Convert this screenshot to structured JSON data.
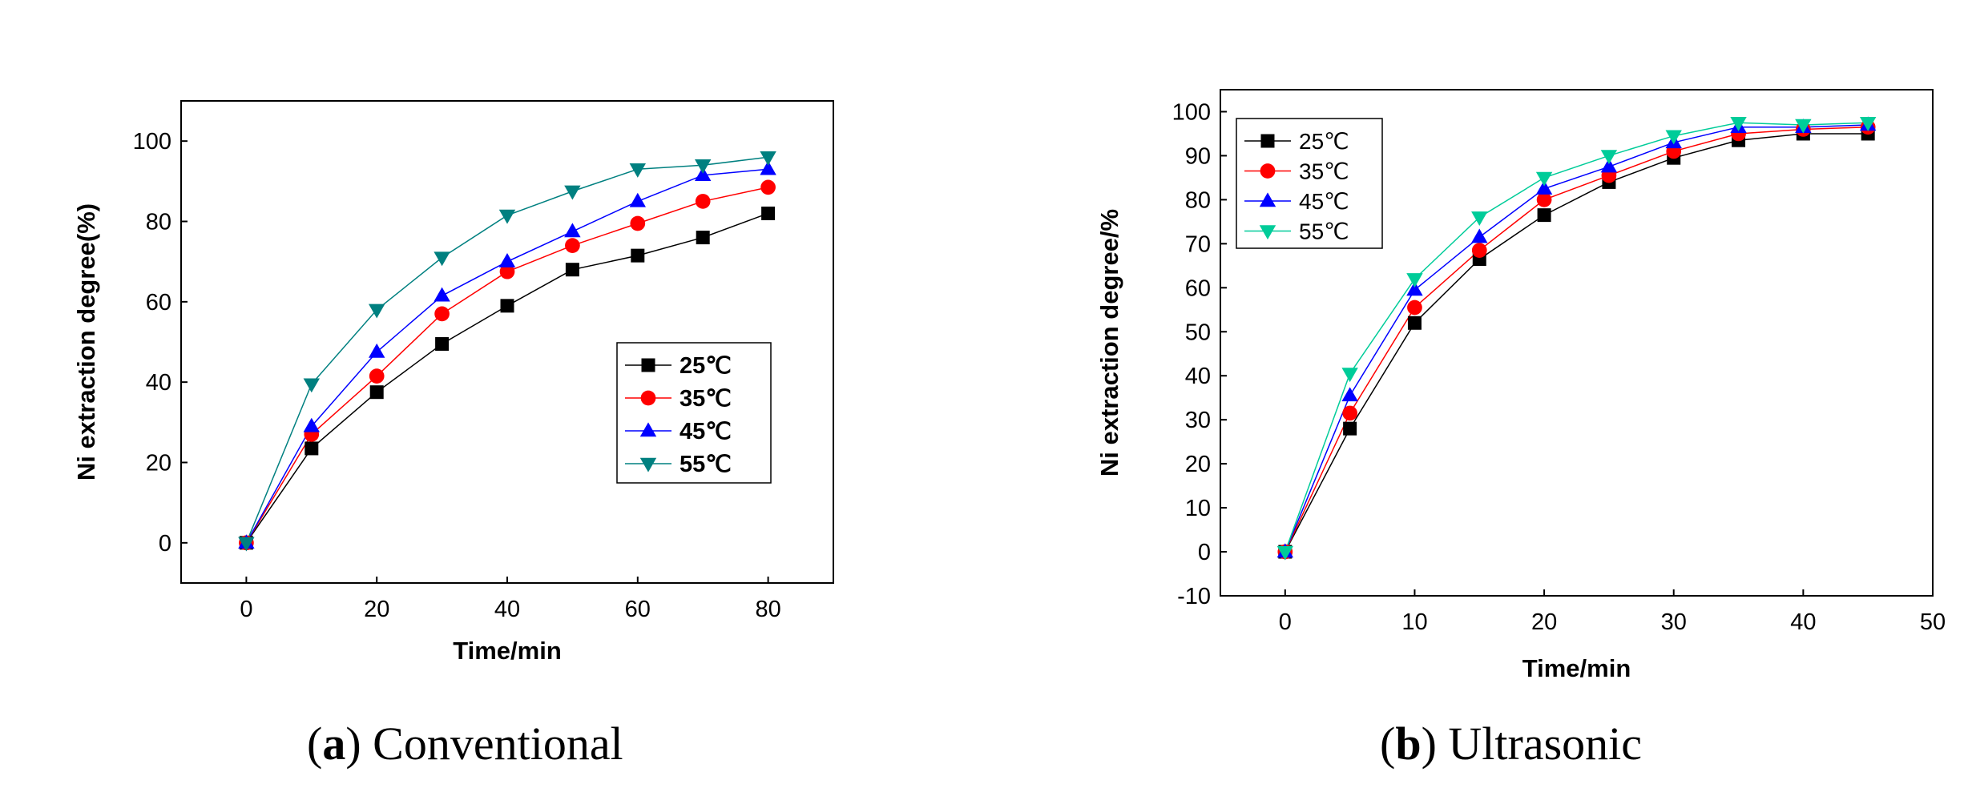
{
  "chart_data": [
    {
      "type": "line",
      "panel": "a",
      "caption_letter": "a",
      "caption_text": "Conventional",
      "xlabel": "Time/min",
      "ylabel": "Ni extraction degree(%)",
      "xlim": [
        -10,
        90
      ],
      "ylim": [
        -10,
        110
      ],
      "xticks": [
        0,
        20,
        40,
        60,
        80
      ],
      "yticks": [
        0,
        20,
        40,
        60,
        80,
        100
      ],
      "x": [
        0,
        10,
        20,
        30,
        40,
        50,
        60,
        70,
        80
      ],
      "legend_position": "center-right",
      "legend_bold": true,
      "series": [
        {
          "name": "25℃",
          "color": "#000000",
          "marker": "square",
          "values": [
            0,
            23.5,
            37.5,
            49.5,
            59,
            68,
            71.5,
            76,
            82
          ]
        },
        {
          "name": "35℃",
          "color": "#ff0000",
          "marker": "circle",
          "values": [
            0,
            27,
            41.5,
            57,
            67.5,
            74,
            79.5,
            85,
            88.5
          ]
        },
        {
          "name": "45℃",
          "color": "#0000ff",
          "marker": "triangle-up",
          "values": [
            0,
            29,
            47.5,
            61.5,
            70,
            77.5,
            85,
            91.5,
            93
          ]
        },
        {
          "name": "55℃",
          "color": "#008080",
          "marker": "triangle-down",
          "values": [
            0,
            39.5,
            58,
            71,
            81.5,
            87.5,
            93,
            94,
            96
          ]
        }
      ]
    },
    {
      "type": "line",
      "panel": "b",
      "caption_letter": "b",
      "caption_text": "Ultrasonic",
      "xlabel": "Time/min",
      "ylabel": "Ni extraction degree/%",
      "xlim": [
        -5,
        50
      ],
      "ylim": [
        -10,
        105
      ],
      "xticks": [
        0,
        10,
        20,
        30,
        40,
        50
      ],
      "yticks": [
        -10,
        0,
        10,
        20,
        30,
        40,
        50,
        60,
        70,
        80,
        90,
        100
      ],
      "x": [
        0,
        5,
        10,
        15,
        20,
        25,
        30,
        35,
        40,
        45
      ],
      "legend_position": "top-left",
      "legend_bold": false,
      "series": [
        {
          "name": "25℃",
          "color": "#000000",
          "marker": "square",
          "values": [
            0,
            28,
            52,
            66.5,
            76.5,
            84,
            89.5,
            93.5,
            95,
            95
          ]
        },
        {
          "name": "35℃",
          "color": "#ff0000",
          "marker": "circle",
          "values": [
            0,
            31.5,
            55.5,
            68.5,
            80,
            85.5,
            91,
            95,
            96,
            96.5
          ]
        },
        {
          "name": "45℃",
          "color": "#0000ff",
          "marker": "triangle-up",
          "values": [
            0,
            35.5,
            59.5,
            71.5,
            82.5,
            87.5,
            93,
            96.5,
            96.5,
            97
          ]
        },
        {
          "name": "55℃",
          "color": "#00cc99",
          "marker": "triangle-down",
          "values": [
            0,
            40.5,
            62,
            76,
            85,
            90,
            94.5,
            97.5,
            97,
            97.5
          ]
        }
      ]
    }
  ]
}
